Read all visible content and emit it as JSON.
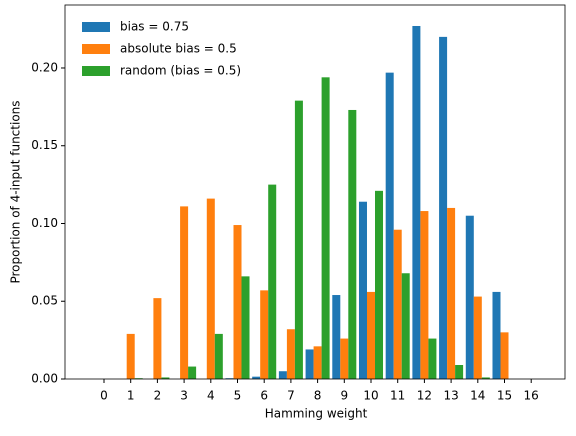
{
  "chart_data": {
    "type": "bar",
    "x_label": "Hamming weight",
    "y_label": "Proportion of 4-input functions",
    "categories": [
      "0",
      "1",
      "2",
      "3",
      "4",
      "5",
      "6",
      "7",
      "8",
      "9",
      "10",
      "11",
      "12",
      "13",
      "14",
      "15",
      "16"
    ],
    "series": [
      {
        "name": "bias = 0.75",
        "color": "#1f77b4",
        "values": [
          0,
          0,
          0,
          0,
          0,
          0.0005,
          0.0015,
          0.005,
          0.019,
          0.054,
          0.114,
          0.197,
          0.227,
          0.22,
          0.105,
          0.056,
          0
        ]
      },
      {
        "name": "absolute bias = 0.5",
        "color": "#ff7f0e",
        "values": [
          0,
          0.029,
          0.052,
          0.111,
          0.116,
          0.099,
          0.057,
          0.032,
          0.021,
          0.026,
          0.056,
          0.096,
          0.108,
          0.11,
          0.053,
          0.03,
          0
        ]
      },
      {
        "name": "random (bias = 0.5)",
        "color": "#2ca02c",
        "values": [
          0,
          0.0005,
          0.001,
          0.008,
          0.029,
          0.066,
          0.125,
          0.179,
          0.194,
          0.173,
          0.121,
          0.068,
          0.026,
          0.009,
          0.001,
          0,
          0
        ]
      }
    ],
    "ylim": [
      0,
      0.2405
    ],
    "yticks": [
      {
        "value": 0,
        "label": "0.00"
      },
      {
        "value": 0.05,
        "label": "0.05"
      },
      {
        "value": 0.1,
        "label": "0.10"
      },
      {
        "value": 0.15,
        "label": "0.15"
      },
      {
        "value": 0.2,
        "label": "0.20"
      }
    ],
    "legend": "upper left"
  }
}
